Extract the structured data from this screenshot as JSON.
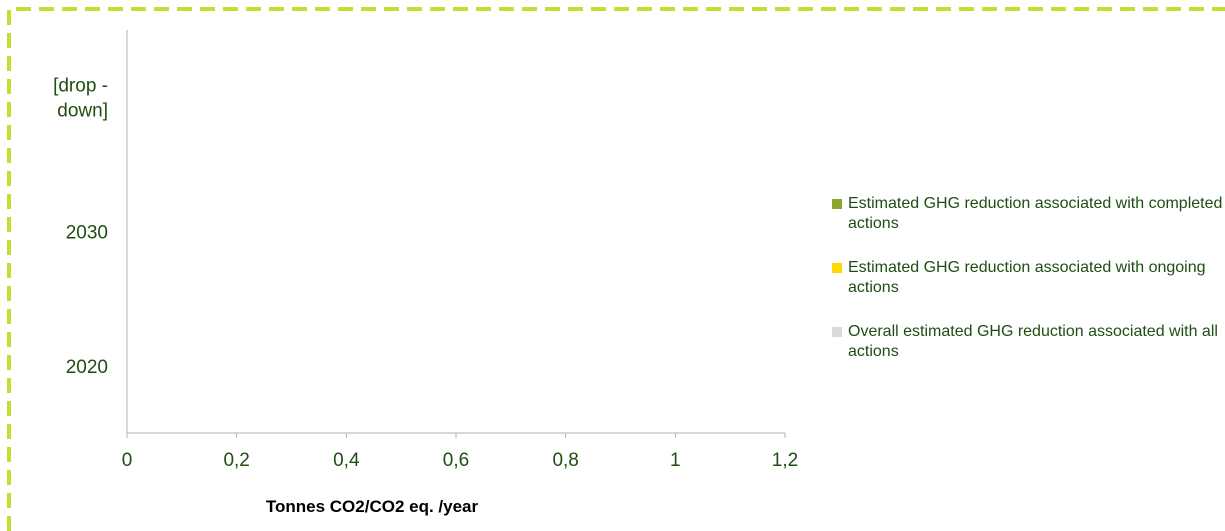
{
  "colors": {
    "frame_dash": "#c8dc32",
    "text": "#1f4e12",
    "axis": "#b0b0b0",
    "axis_title": "#000000"
  },
  "chart_data": {
    "type": "bar",
    "orientation": "horizontal",
    "categories": [
      "2020",
      "2030",
      "[drop - down]"
    ],
    "xlabel": "Tonnes CO2/CO2 eq. /year",
    "ylabel": "",
    "xlim": [
      0,
      1.2
    ],
    "xticks": [
      "0",
      "0,2",
      "0,4",
      "0,6",
      "0,8",
      "1",
      "1,2"
    ],
    "grid": false,
    "legend_position": "right",
    "series": [
      {
        "name": "Estimated GHG reduction associated with completed actions",
        "color": "#8aa62b",
        "values": [
          null,
          null,
          null
        ]
      },
      {
        "name": "Estimated GHG reduction associated with ongoing actions",
        "color": "#ffd800",
        "values": [
          null,
          null,
          null
        ]
      },
      {
        "name": "Overall estimated GHG reduction associated with all actions",
        "color": "#d9d9d9",
        "values": [
          null,
          null,
          null
        ]
      }
    ]
  }
}
